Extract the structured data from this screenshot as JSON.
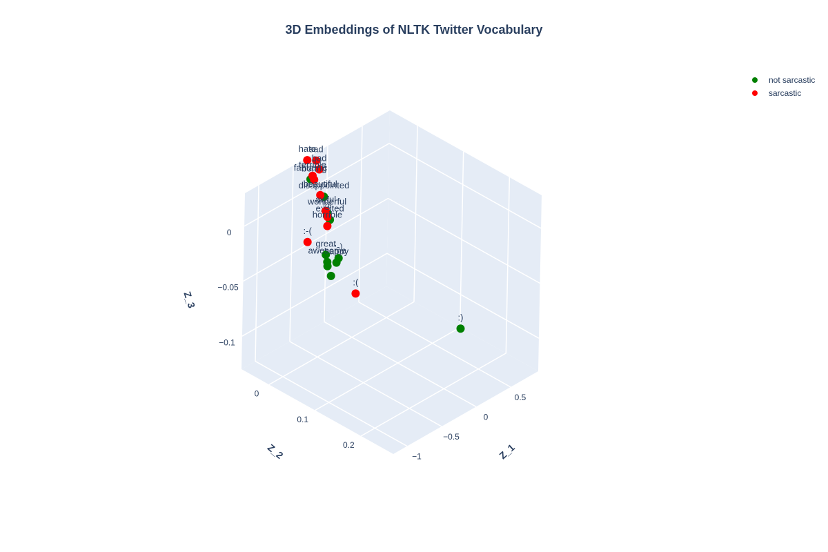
{
  "chart_data": {
    "type": "scatter3d",
    "title": "3D Embeddings of NLTK Twitter Vocabulary",
    "axes": {
      "x": {
        "label": "Z_1",
        "range": [
          -1.2,
          0.9
        ],
        "ticks": [
          "−1",
          "−0.5",
          "0",
          "0.5"
        ],
        "tick_values": [
          -1,
          -0.5,
          0,
          0.5
        ]
      },
      "y": {
        "label": "Z_2",
        "range": [
          -0.06,
          0.27
        ],
        "ticks": [
          "0",
          "0.1",
          "0.2"
        ],
        "tick_values": [
          0,
          0.1,
          0.2
        ]
      },
      "z": {
        "label": "Z_3",
        "range": [
          -0.13,
          0.03
        ],
        "ticks": [
          "0",
          "−0.05",
          "−0.1"
        ],
        "tick_values": [
          0,
          -0.05,
          -0.1
        ]
      }
    },
    "grid": true,
    "legend": {
      "placement": "top-right",
      "entries": [
        "not sarcastic",
        "sarcastic"
      ]
    },
    "series": [
      {
        "name": "not sarcastic",
        "color": "#008000",
        "points": [
          {
            "label": "fantastic",
            "x": -0.38,
            "y": -0.04,
            "z": 0.018
          },
          {
            "label": "disappointed",
            "x": -0.28,
            "y": -0.025,
            "z": 0.002
          },
          {
            "label": "wonderful",
            "x": -0.25,
            "y": -0.022,
            "z": -0.013
          },
          {
            "label": "excited",
            "x": -0.22,
            "y": -0.02,
            "z": -0.02
          },
          {
            "label": ":-)",
            "x": -0.15,
            "y": -0.01,
            "z": -0.055
          },
          {
            "label": "happy",
            "x": -0.18,
            "y": -0.01,
            "z": -0.058
          },
          {
            "label": "great",
            "x": -0.27,
            "y": -0.02,
            "z": -0.05
          },
          {
            "label": "awesome",
            "x": -0.28,
            "y": -0.015,
            "z": -0.055
          },
          {
            "label": "",
            "x": -0.29,
            "y": -0.013,
            "z": -0.058
          },
          {
            "label": "",
            "x": -0.29,
            "y": -0.005,
            "z": -0.065
          },
          {
            "label": ":)",
            "x": -0.08,
            "y": 0.245,
            "z": -0.062
          }
        ]
      },
      {
        "name": "sarcastic",
        "color": "#ff0000",
        "points": [
          {
            "label": "hate",
            "x": -0.33,
            "y": -0.055,
            "z": 0.03
          },
          {
            "label": "sad",
            "x": -0.2,
            "y": -0.055,
            "z": 0.025
          },
          {
            "label": "bad",
            "x": -0.22,
            "y": -0.045,
            "z": 0.02
          },
          {
            "label": "terrible",
            "x": -0.35,
            "y": -0.04,
            "z": 0.02
          },
          {
            "label": "boring",
            "x": -0.36,
            "y": -0.035,
            "z": 0.018
          },
          {
            "label": "beautiful",
            "x": -0.3,
            "y": -0.03,
            "z": 0.003
          },
          {
            "label": "awful",
            "x": -0.25,
            "y": -0.025,
            "z": -0.012
          },
          {
            "label": "@",
            "x": -0.27,
            "y": -0.018,
            "z": -0.015
          },
          {
            "label": "horrible",
            "x": -0.29,
            "y": -0.015,
            "z": -0.022
          },
          {
            "label": ":-(",
            "x": -0.95,
            "y": 0.04,
            "z": 0.0
          },
          {
            "label": ":(",
            "x": -0.98,
            "y": 0.15,
            "z": -0.02
          }
        ]
      }
    ]
  }
}
